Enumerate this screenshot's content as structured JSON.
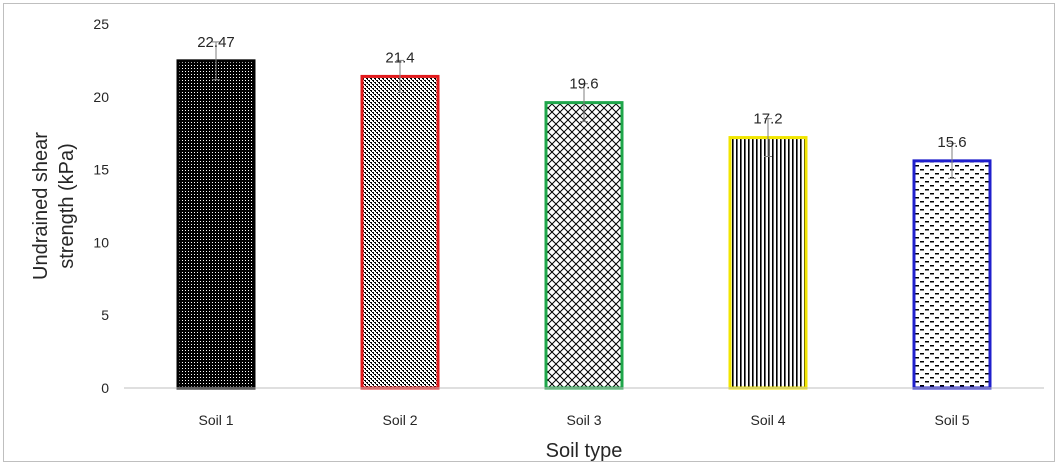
{
  "chart_data": {
    "type": "bar",
    "categories": [
      "Soil 1",
      "Soil 2",
      "Soil 3",
      "Soil 4",
      "Soil 5"
    ],
    "values": [
      22.47,
      21.4,
      19.6,
      17.2,
      15.6
    ],
    "data_labels": [
      "22.47",
      "21.4",
      "19.6",
      "17.2",
      "15.6"
    ],
    "error": [
      1.3,
      1.1,
      1.3,
      1.3,
      1.2
    ],
    "bar_outline_colors": [
      "#000000",
      "#e31a1c",
      "#1fa64a",
      "#f2e600",
      "#1f1fcc"
    ],
    "bar_patterns": [
      "dense-dots",
      "dots",
      "crosshatch",
      "vertical-lines",
      "dashes"
    ],
    "xlabel": "Soil type",
    "ylabel": "Undrained shear strength (kPa)",
    "ylabel_lines": [
      "Undrained shear",
      "strength (kPa)"
    ],
    "ylim": [
      0,
      25
    ],
    "yticks": [
      "0",
      "5",
      "10",
      "15",
      "20",
      "25"
    ],
    "grid": false,
    "legend": "none"
  }
}
